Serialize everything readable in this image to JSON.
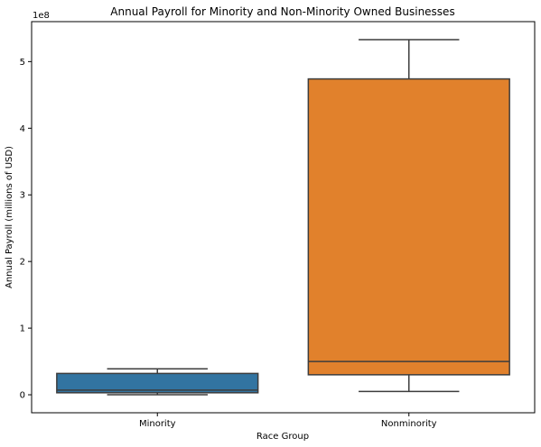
{
  "chart_data": {
    "type": "box",
    "title": "Annual Payroll for Minority and Non-Minority Owned Businesses",
    "xlabel": "Race Group",
    "ylabel": "Annual Payroll (millions of USD)",
    "y_offset_label": "1e8",
    "categories": [
      "Minority",
      "Nonminority"
    ],
    "ylim": [
      -0.27,
      5.6
    ],
    "yticks": [
      0,
      1,
      2,
      3,
      4,
      5
    ],
    "grid": false,
    "boxes": [
      {
        "category": "Minority",
        "whisker_low": 0.0,
        "q1": 0.03,
        "median": 0.07,
        "q3": 0.32,
        "whisker_high": 0.39,
        "color": "#3274a1"
      },
      {
        "category": "Nonminority",
        "whisker_low": 0.05,
        "q1": 0.3,
        "median": 0.5,
        "q3": 4.74,
        "whisker_high": 5.33,
        "color": "#e1812c"
      }
    ]
  }
}
